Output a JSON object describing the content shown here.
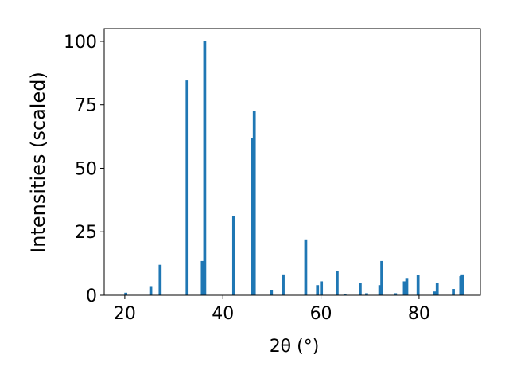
{
  "chart_data": {
    "type": "bar",
    "x_label": "2θ (°)",
    "y_label": "Intensities (scaled)",
    "color": "#1f77b4",
    "x": [
      20.2,
      25.3,
      27.2,
      32.7,
      35.8,
      36.3,
      42.2,
      46.0,
      46.4,
      49.9,
      52.3,
      56.9,
      59.3,
      60.1,
      63.3,
      64.9,
      68.0,
      69.3,
      72.0,
      72.4,
      75.2,
      77.0,
      77.5,
      79.8,
      83.2,
      83.7,
      87.0,
      88.5,
      88.8
    ],
    "values": [
      1,
      3.3,
      12,
      84.6,
      13.5,
      100,
      31.3,
      62,
      72.7,
      2,
      8.2,
      22,
      4,
      5.5,
      9.7,
      0.5,
      4.8,
      0.8,
      4,
      13.5,
      0.8,
      5.5,
      6.8,
      8,
      1.5,
      4.9,
      2.5,
      7.5,
      8.2
    ],
    "xlim": [
      15.8,
      92.5
    ],
    "ylim": [
      0,
      105
    ],
    "xticks": [
      20,
      40,
      60,
      80
    ],
    "yticks": [
      0,
      25,
      50,
      75,
      100
    ]
  }
}
